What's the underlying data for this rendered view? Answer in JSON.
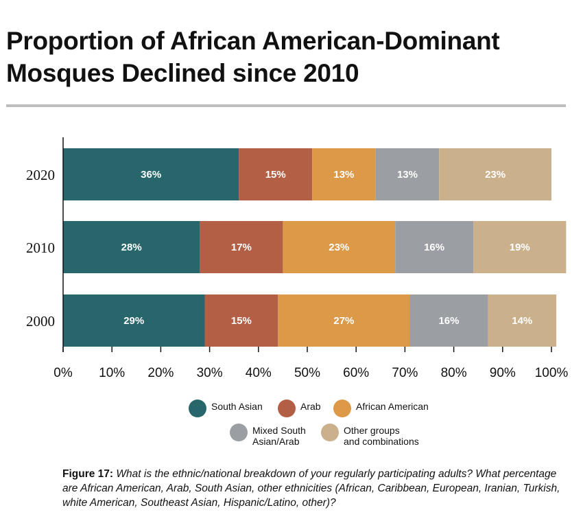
{
  "title": "Proportion of African American-Dominant Mosques Declined since 2010",
  "caption": {
    "label": "Figure 17:",
    "text": "What is the ethnic/national breakdown of your regularly participating adults? What percentage are African American, Arab, South Asian, other ethnicities (African, Caribbean, European, Iranian, Turkish, white American, Southeast Asian, Hispanic/Latino, other)?"
  },
  "colors": {
    "South Asian": "#27666b",
    "Arab": "#b35f45",
    "African American": "#dc9947",
    "Mixed South Asian/Arab": "#9b9fa3",
    "Other groups and combinations": "#cbb08c",
    "axis": "#111111",
    "title_rule": "#bdbdbd"
  },
  "legend": [
    {
      "key": "South Asian",
      "label": "South Asian"
    },
    {
      "key": "Arab",
      "label": "Arab"
    },
    {
      "key": "African American",
      "label": "African American"
    },
    {
      "key": "Mixed South Asian/Arab",
      "label": "Mixed South\nAsian/Arab"
    },
    {
      "key": "Other groups and combinations",
      "label": "Other groups\nand combinations"
    }
  ],
  "chart_data": {
    "type": "bar",
    "orientation": "horizontal",
    "stacked": true,
    "categories": [
      "2020",
      "2010",
      "2000"
    ],
    "series": [
      {
        "name": "South Asian",
        "values": [
          36,
          28,
          29
        ],
        "labels": [
          "36%",
          "28%",
          "29%"
        ]
      },
      {
        "name": "Arab",
        "values": [
          15,
          17,
          15
        ],
        "labels": [
          "15%",
          "17%",
          "15%"
        ]
      },
      {
        "name": "African American",
        "values": [
          13,
          23,
          27
        ],
        "labels": [
          "13%",
          "23%",
          "27%"
        ]
      },
      {
        "name": "Mixed South Asian/Arab",
        "values": [
          13,
          16,
          16
        ],
        "labels": [
          "13%",
          "16%",
          "16%"
        ]
      },
      {
        "name": "Other groups and combinations",
        "values": [
          23,
          19,
          14
        ],
        "labels": [
          "23%",
          "19%",
          "14%"
        ]
      }
    ],
    "xlim": [
      0,
      100
    ],
    "xticks": [
      0,
      10,
      20,
      30,
      40,
      50,
      60,
      70,
      80,
      90,
      100
    ],
    "xtick_labels": [
      "0%",
      "10%",
      "20%",
      "30%",
      "40%",
      "50%",
      "60%",
      "70%",
      "80%",
      "90%",
      "100%"
    ],
    "xlabel": "",
    "ylabel": "",
    "grid": false,
    "legend_position": "bottom"
  }
}
